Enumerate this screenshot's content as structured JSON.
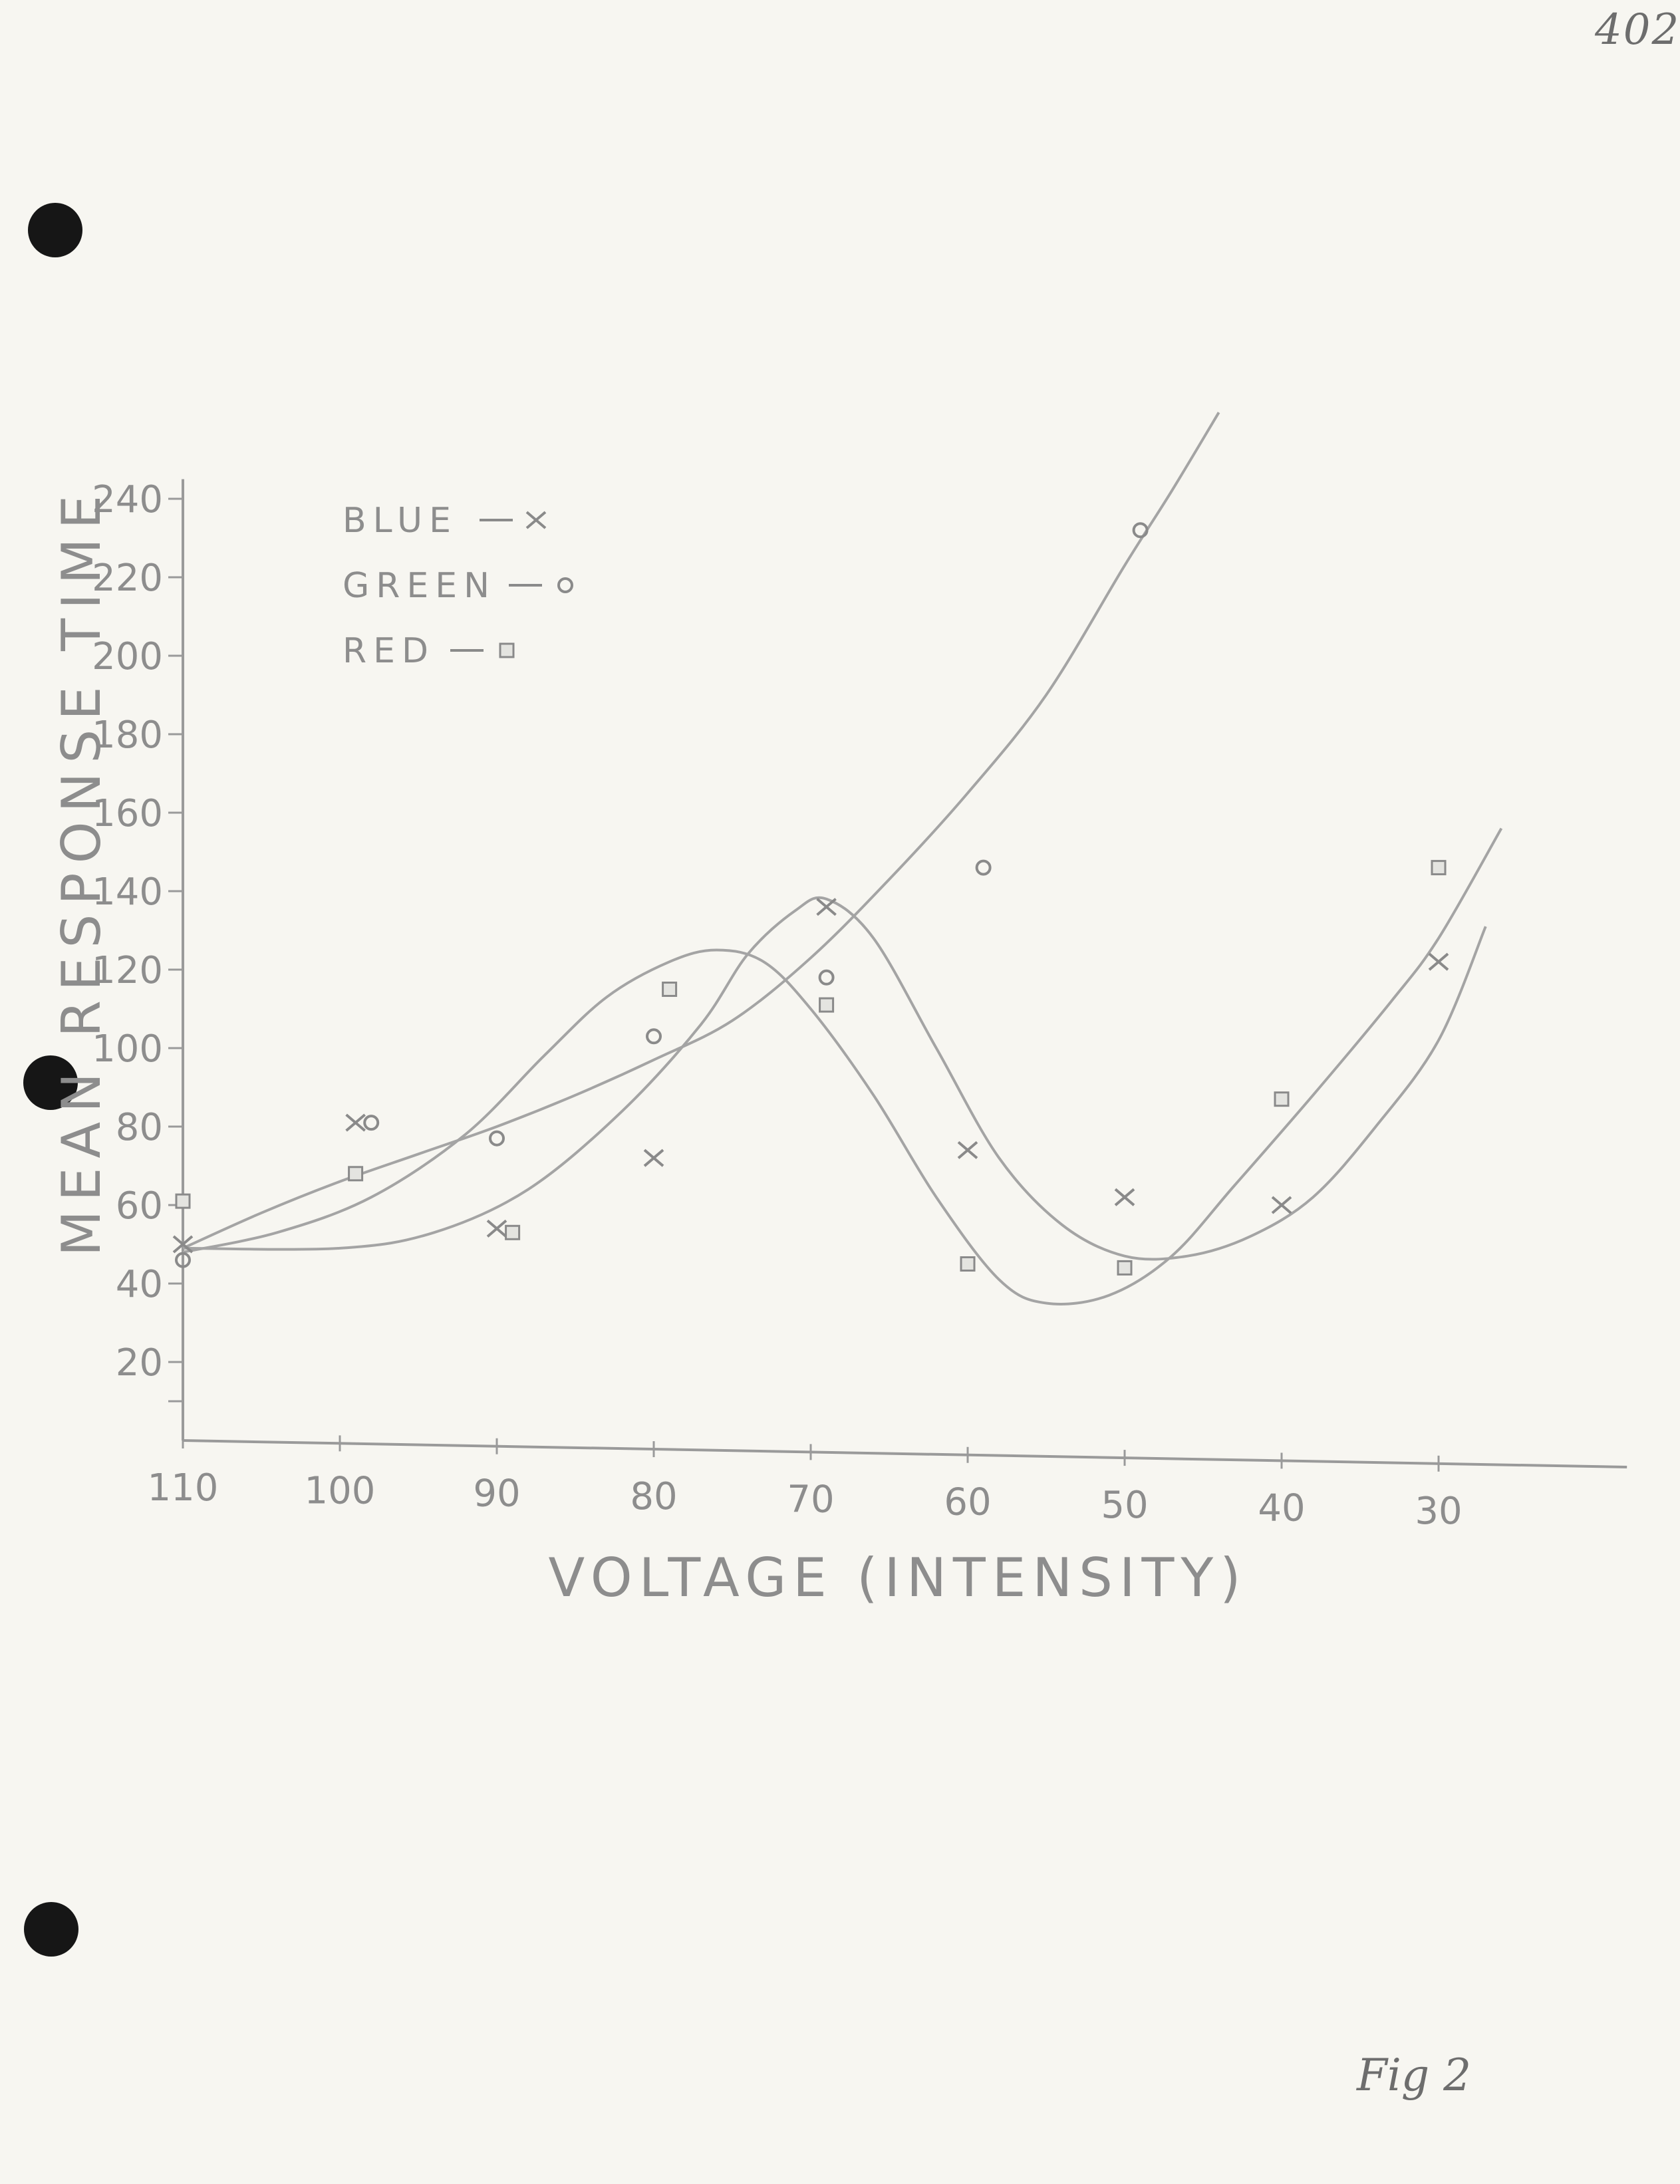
{
  "page_number": "402",
  "figure_label": "Fig 2",
  "chart_data": {
    "type": "scatter",
    "xlabel": "VOLTAGE (INTENSITY)",
    "ylabel": "MEAN RESPONSE TIME",
    "x_ticks": [
      "110",
      "100",
      "90",
      "80",
      "70",
      "60",
      "50",
      "40",
      "30"
    ],
    "y_ticks": [
      "20",
      "40",
      "60",
      "80",
      "100",
      "120",
      "140",
      "160",
      "180",
      "200",
      "220",
      "240"
    ],
    "xlim": [
      110,
      18
    ],
    "ylim": [
      0,
      245
    ],
    "x_reversed": true,
    "grid": false,
    "legend_position": "top-left",
    "legend": [
      {
        "label": "BLUE",
        "marker": "X"
      },
      {
        "label": "GREEN",
        "marker": "o"
      },
      {
        "label": "RED",
        "marker": "□"
      }
    ],
    "series": [
      {
        "name": "BLUE",
        "marker": "x",
        "points": [
          [
            110,
            50
          ],
          [
            99,
            81
          ],
          [
            90,
            54
          ],
          [
            80,
            72
          ],
          [
            69,
            136
          ],
          [
            60,
            74
          ],
          [
            50,
            62
          ],
          [
            40,
            60
          ],
          [
            30,
            122
          ]
        ],
        "curve": [
          [
            110,
            49
          ],
          [
            100,
            49
          ],
          [
            94,
            53
          ],
          [
            88,
            64
          ],
          [
            82,
            84
          ],
          [
            77,
            106
          ],
          [
            74,
            124
          ],
          [
            71,
            135
          ],
          [
            69,
            138
          ],
          [
            66,
            128
          ],
          [
            62,
            100
          ],
          [
            58,
            72
          ],
          [
            54,
            55
          ],
          [
            50,
            47
          ],
          [
            46,
            47
          ],
          [
            42,
            52
          ],
          [
            38,
            62
          ],
          [
            34,
            80
          ],
          [
            30,
            102
          ],
          [
            27,
            131
          ]
        ]
      },
      {
        "name": "GREEN",
        "marker": "o",
        "points": [
          [
            110,
            46
          ],
          [
            98,
            81
          ],
          [
            90,
            77
          ],
          [
            80,
            103
          ],
          [
            69,
            118
          ],
          [
            59,
            146
          ],
          [
            49,
            232
          ]
        ],
        "curve": [
          [
            110,
            49
          ],
          [
            105,
            58
          ],
          [
            100,
            66
          ],
          [
            95,
            73
          ],
          [
            90,
            80
          ],
          [
            85,
            88
          ],
          [
            80,
            97
          ],
          [
            75,
            107
          ],
          [
            70,
            123
          ],
          [
            65,
            143
          ],
          [
            60,
            165
          ],
          [
            55,
            190
          ],
          [
            50,
            223
          ],
          [
            47,
            242
          ],
          [
            44,
            262
          ]
        ]
      },
      {
        "name": "RED",
        "marker": "square",
        "points": [
          [
            110,
            61
          ],
          [
            99,
            68
          ],
          [
            89,
            53
          ],
          [
            79,
            115
          ],
          [
            69,
            111
          ],
          [
            60,
            45
          ],
          [
            50,
            44
          ],
          [
            40,
            87
          ],
          [
            30,
            146
          ]
        ],
        "curve": [
          [
            110,
            48
          ],
          [
            104,
            53
          ],
          [
            98,
            62
          ],
          [
            92,
            78
          ],
          [
            87,
            98
          ],
          [
            83,
            113
          ],
          [
            79,
            122
          ],
          [
            76,
            125
          ],
          [
            73,
            122
          ],
          [
            70,
            110
          ],
          [
            66,
            88
          ],
          [
            62,
            62
          ],
          [
            58,
            41
          ],
          [
            55,
            35
          ],
          [
            51,
            37
          ],
          [
            47,
            47
          ],
          [
            43,
            65
          ],
          [
            38,
            88
          ],
          [
            33,
            112
          ],
          [
            30,
            128
          ],
          [
            26,
            156
          ]
        ]
      }
    ]
  }
}
